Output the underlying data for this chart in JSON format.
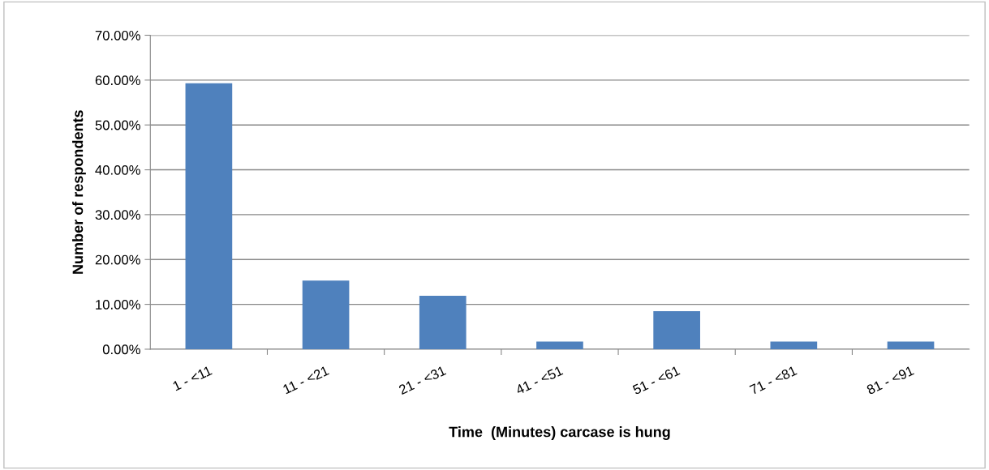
{
  "chart_data": {
    "type": "bar",
    "xlabel": "Time  (Minutes) carcase is hung",
    "ylabel": "Number of respondents",
    "categories": [
      "1 - <11",
      "11 - <21",
      "21 - <31",
      "41 - <51",
      "51 - <61",
      "71 - <81",
      "81 - <91"
    ],
    "values": [
      59.3,
      15.3,
      11.9,
      1.7,
      8.5,
      1.7,
      1.7
    ],
    "color": "#4f81bd",
    "ylim": [
      0,
      70
    ],
    "yticks": [
      {
        "value": 0,
        "label": "0.00%"
      },
      {
        "value": 10,
        "label": "10.00%"
      },
      {
        "value": 20,
        "label": "20.00%"
      },
      {
        "value": 30,
        "label": "30.00%"
      },
      {
        "value": 40,
        "label": "40.00%"
      },
      {
        "value": 50,
        "label": "50.00%"
      },
      {
        "value": 60,
        "label": "60.00%"
      },
      {
        "value": 70,
        "label": "70.00%"
      }
    ],
    "grid": "y",
    "legend": false
  }
}
